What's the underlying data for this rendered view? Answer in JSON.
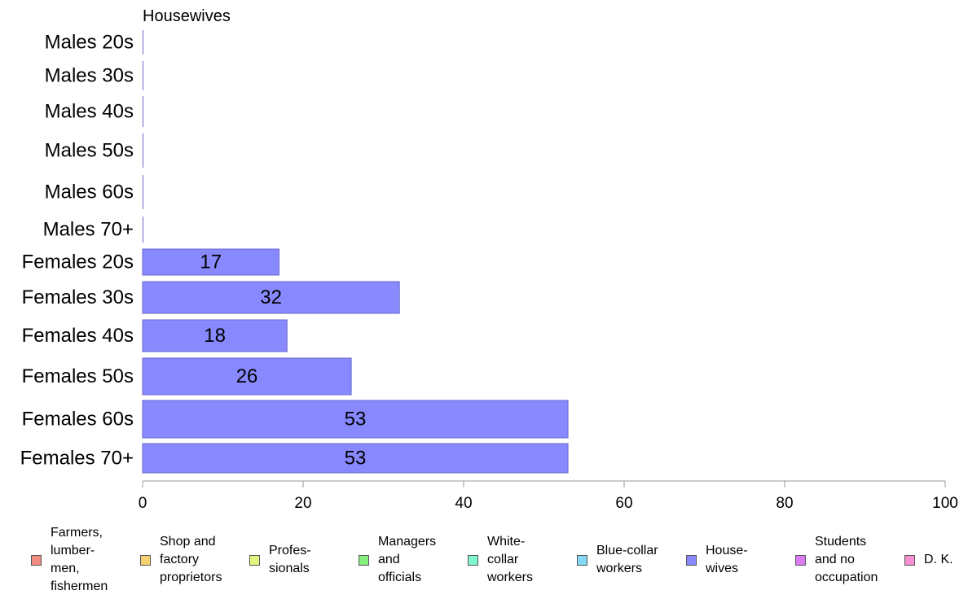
{
  "chart_data": {
    "type": "bar",
    "orientation": "horizontal",
    "title": "Housewives",
    "categories": [
      "Males 20s",
      "Males 30s",
      "Males 40s",
      "Males 50s",
      "Males 60s",
      "Males 70+",
      "Females 20s",
      "Females 30s",
      "Females 40s",
      "Females 50s",
      "Females 60s",
      "Females 70+"
    ],
    "values": [
      0,
      0,
      0,
      0,
      0,
      0,
      17,
      32,
      18,
      26,
      53,
      53
    ],
    "data_labels": [
      "",
      "",
      "",
      "",
      "",
      "",
      "17",
      "32",
      "18",
      "26",
      "53",
      "53"
    ],
    "xlim": [
      0,
      100
    ],
    "x_ticks": [
      "0",
      "20",
      "40",
      "60",
      "80",
      "100"
    ],
    "bar_color": "#8888ff",
    "bar_edge_color": "#6a6acc",
    "grid": false,
    "legend_position": "bottom",
    "legend": [
      {
        "label": "Farmers,\nlumber-\nmen,\nfishermen",
        "color": "#f28b82"
      },
      {
        "label": "Shop and\nfactory\nproprietors",
        "color": "#f7d070"
      },
      {
        "label": "Profes-\nsionals",
        "color": "#e2f57e"
      },
      {
        "label": "Managers\nand\nofficials",
        "color": "#86f07e"
      },
      {
        "label": "White-\ncollar\nworkers",
        "color": "#7ff5d2"
      },
      {
        "label": "Blue-collar\nworkers",
        "color": "#85d9f7"
      },
      {
        "label": "House-\nwives",
        "color": "#8888ff"
      },
      {
        "label": "Students\nand no\noccupation",
        "color": "#dc7cf5"
      },
      {
        "label": "D. K.",
        "color": "#f590d2"
      }
    ]
  }
}
